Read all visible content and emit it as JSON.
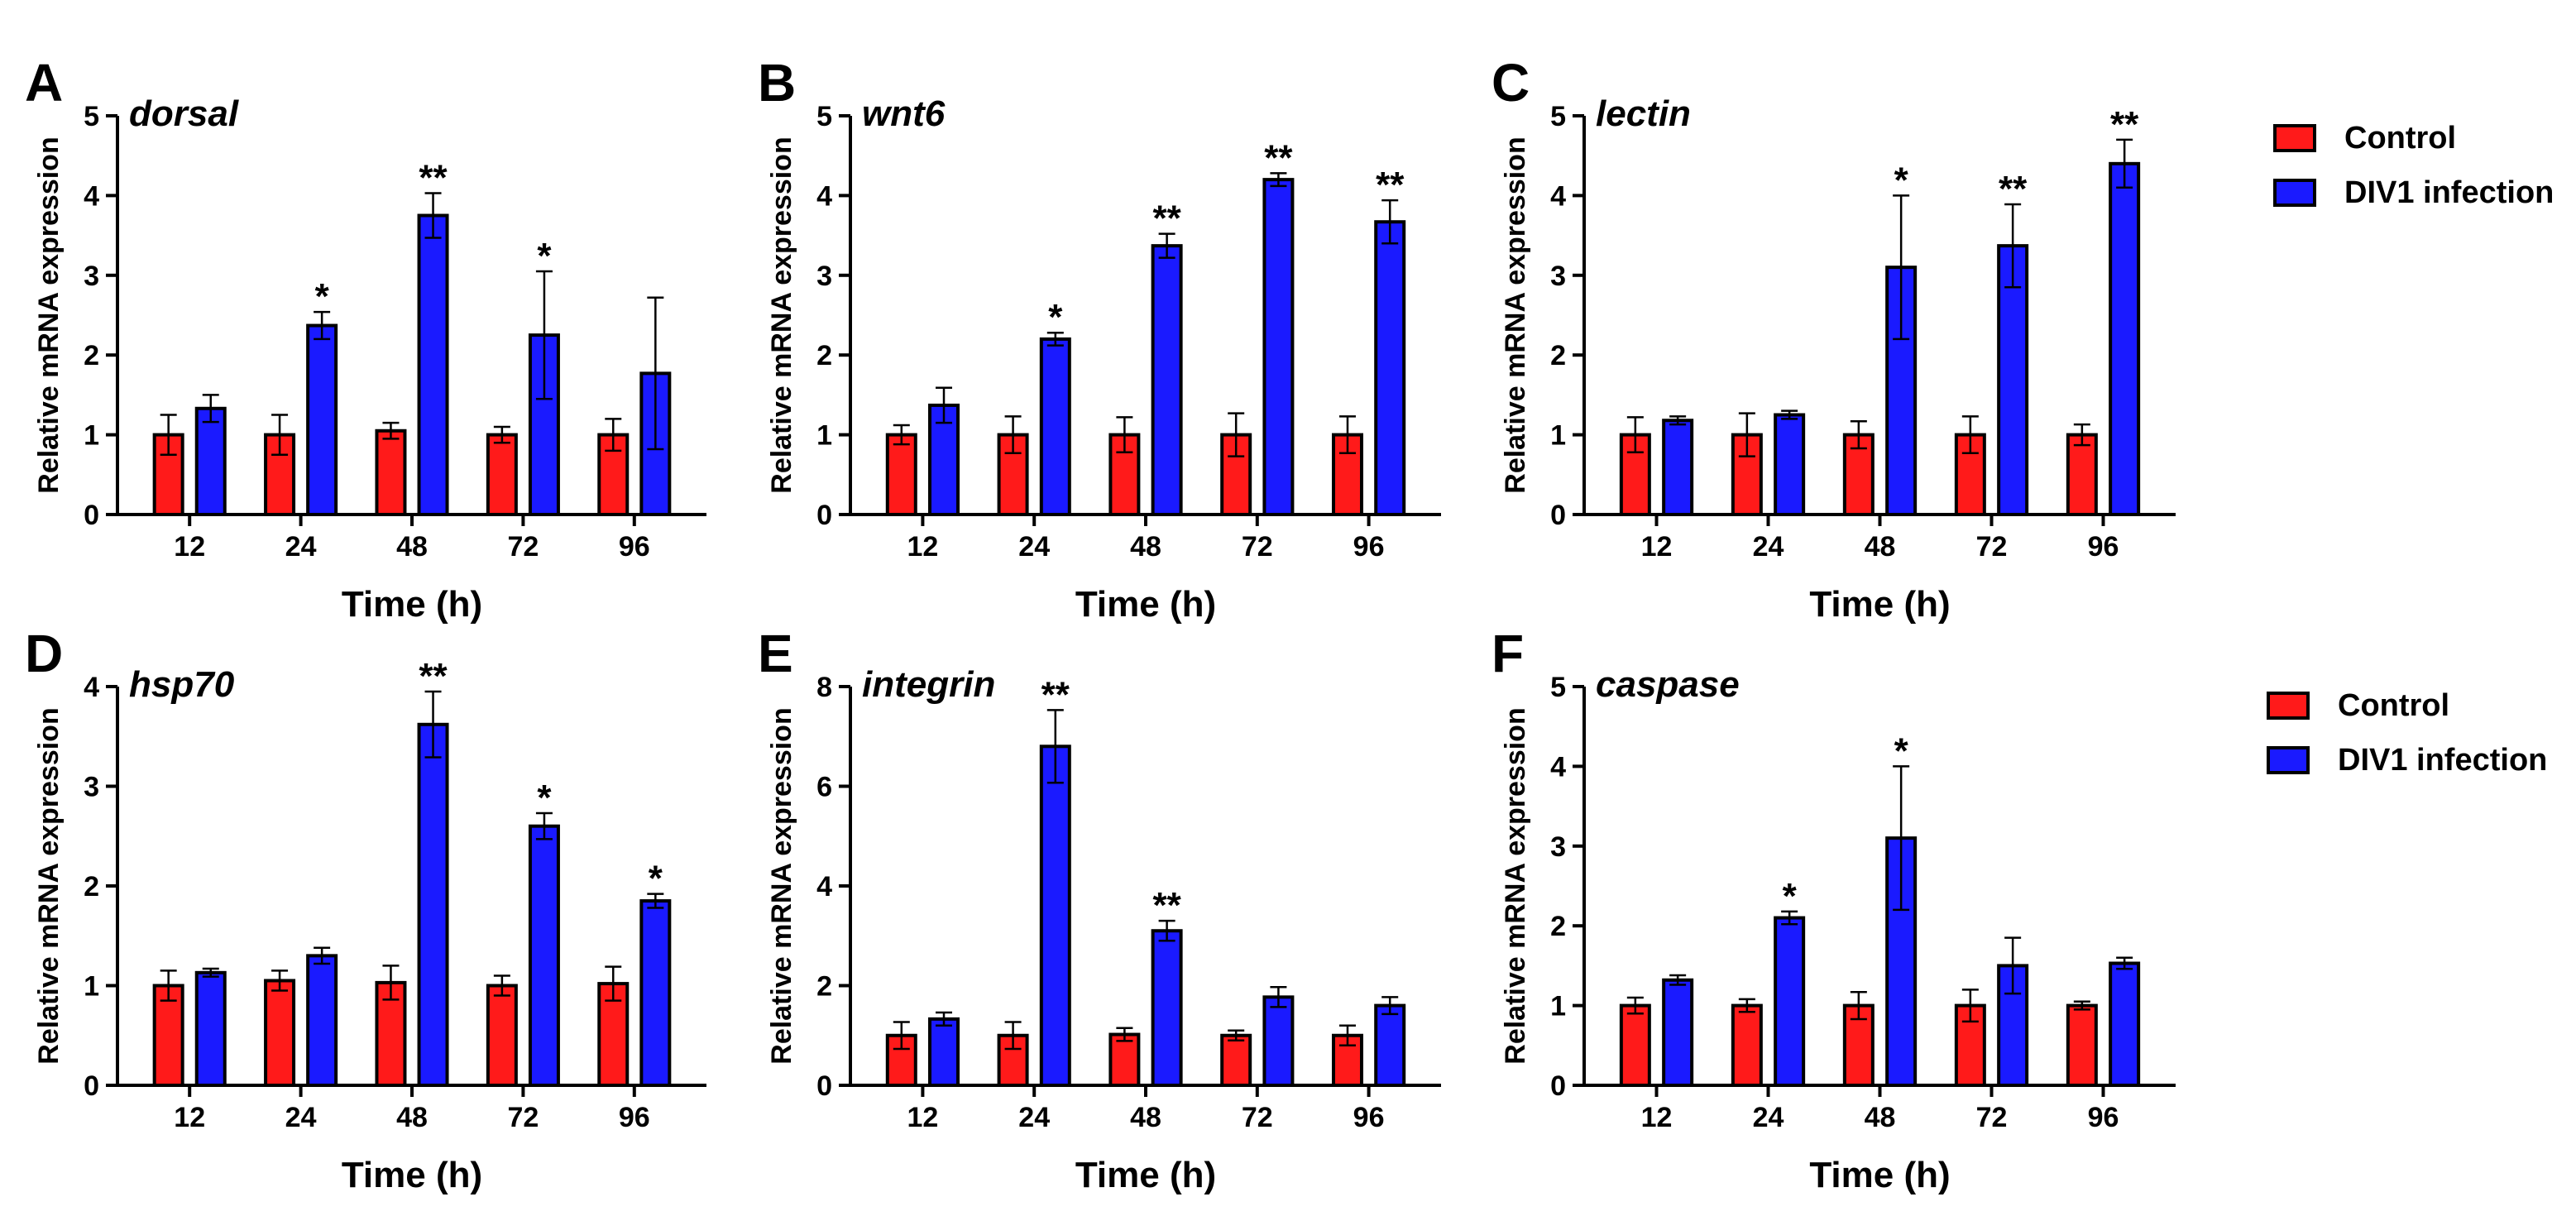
{
  "colors": {
    "control": "#ff1a1a",
    "infection": "#1a1aff",
    "axis": "#000000"
  },
  "legend": [
    {
      "label": "Control",
      "color": "#ff1a1a"
    },
    {
      "label": "DIV1 infection",
      "color": "#1a1aff"
    }
  ],
  "chart_data": [
    {
      "type": "bar",
      "panel": "A",
      "title": "dorsal",
      "xlabel": "Time (h)",
      "ylabel": "Relative mRNA expression",
      "categories": [
        "12",
        "24",
        "48",
        "72",
        "96"
      ],
      "ylim": [
        0,
        5
      ],
      "yticks": [
        0,
        1,
        2,
        3,
        4,
        5
      ],
      "series": [
        {
          "name": "Control",
          "values": [
            1.0,
            1.0,
            1.05,
            1.0,
            1.0
          ],
          "errors": [
            0.25,
            0.25,
            0.1,
            0.1,
            0.2
          ]
        },
        {
          "name": "DIV1 infection",
          "values": [
            1.33,
            2.37,
            3.75,
            2.25,
            1.77
          ],
          "errors": [
            0.17,
            0.17,
            0.28,
            0.8,
            0.95
          ]
        }
      ],
      "significance": [
        "",
        "*",
        "**",
        "*",
        ""
      ]
    },
    {
      "type": "bar",
      "panel": "B",
      "title": "wnt6",
      "xlabel": "Time (h)",
      "ylabel": "Relative mRNA expression",
      "categories": [
        "12",
        "24",
        "48",
        "72",
        "96"
      ],
      "ylim": [
        0,
        5
      ],
      "yticks": [
        0,
        1,
        2,
        3,
        4,
        5
      ],
      "series": [
        {
          "name": "Control",
          "values": [
            1.0,
            1.0,
            1.0,
            1.0,
            1.0
          ],
          "errors": [
            0.12,
            0.23,
            0.22,
            0.27,
            0.23
          ]
        },
        {
          "name": "DIV1 infection",
          "values": [
            1.37,
            2.2,
            3.37,
            4.2,
            3.67
          ],
          "errors": [
            0.22,
            0.08,
            0.15,
            0.08,
            0.27
          ]
        }
      ],
      "significance": [
        "",
        "*",
        "**",
        "**",
        "**"
      ]
    },
    {
      "type": "bar",
      "panel": "C",
      "title": "lectin",
      "xlabel": "Time (h)",
      "ylabel": "Relative mRNA expression",
      "categories": [
        "12",
        "24",
        "48",
        "72",
        "96"
      ],
      "ylim": [
        0,
        5
      ],
      "yticks": [
        0,
        1,
        2,
        3,
        4,
        5
      ],
      "series": [
        {
          "name": "Control",
          "values": [
            1.0,
            1.0,
            1.0,
            1.0,
            1.0
          ],
          "errors": [
            0.22,
            0.27,
            0.17,
            0.23,
            0.13
          ]
        },
        {
          "name": "DIV1 infection",
          "values": [
            1.18,
            1.25,
            3.1,
            3.37,
            4.4
          ],
          "errors": [
            0.05,
            0.05,
            0.9,
            0.52,
            0.3
          ]
        }
      ],
      "significance": [
        "",
        "",
        "*",
        "**",
        "**"
      ]
    },
    {
      "type": "bar",
      "panel": "D",
      "title": "hsp70",
      "xlabel": "Time (h)",
      "ylabel": "Relative mRNA expression",
      "categories": [
        "12",
        "24",
        "48",
        "72",
        "96"
      ],
      "ylim": [
        0,
        4
      ],
      "yticks": [
        0,
        1,
        2,
        3,
        4
      ],
      "series": [
        {
          "name": "Control",
          "values": [
            1.0,
            1.05,
            1.03,
            1.0,
            1.02
          ],
          "errors": [
            0.15,
            0.1,
            0.17,
            0.1,
            0.17
          ]
        },
        {
          "name": "DIV1 infection",
          "values": [
            1.13,
            1.3,
            3.62,
            2.6,
            1.85
          ],
          "errors": [
            0.04,
            0.08,
            0.33,
            0.13,
            0.07
          ]
        }
      ],
      "significance": [
        "",
        "",
        "**",
        "*",
        "*"
      ]
    },
    {
      "type": "bar",
      "panel": "E",
      "title": "integrin",
      "xlabel": "Time (h)",
      "ylabel": "Relative mRNA expression",
      "categories": [
        "12",
        "24",
        "48",
        "72",
        "96"
      ],
      "ylim": [
        0,
        8
      ],
      "yticks": [
        0,
        2,
        4,
        6,
        8
      ],
      "series": [
        {
          "name": "Control",
          "values": [
            1.0,
            1.0,
            1.02,
            1.0,
            1.0
          ],
          "errors": [
            0.27,
            0.27,
            0.13,
            0.1,
            0.2
          ]
        },
        {
          "name": "DIV1 infection",
          "values": [
            1.33,
            6.8,
            3.1,
            1.77,
            1.6
          ],
          "errors": [
            0.13,
            0.73,
            0.2,
            0.2,
            0.17
          ]
        }
      ],
      "significance": [
        "",
        "**",
        "**",
        "",
        ""
      ]
    },
    {
      "type": "bar",
      "panel": "F",
      "title": "caspase",
      "xlabel": "Time (h)",
      "ylabel": "Relative mRNA expression",
      "categories": [
        "12",
        "24",
        "48",
        "72",
        "96"
      ],
      "ylim": [
        0,
        5
      ],
      "yticks": [
        0,
        1,
        2,
        3,
        4,
        5
      ],
      "series": [
        {
          "name": "Control",
          "values": [
            1.0,
            1.0,
            1.0,
            1.0,
            1.0
          ],
          "errors": [
            0.1,
            0.08,
            0.17,
            0.2,
            0.05
          ]
        },
        {
          "name": "DIV1 infection",
          "values": [
            1.32,
            2.1,
            3.1,
            1.5,
            1.53
          ],
          "errors": [
            0.06,
            0.08,
            0.9,
            0.35,
            0.07
          ]
        }
      ],
      "significance": [
        "",
        "*",
        "*",
        "",
        ""
      ]
    }
  ]
}
